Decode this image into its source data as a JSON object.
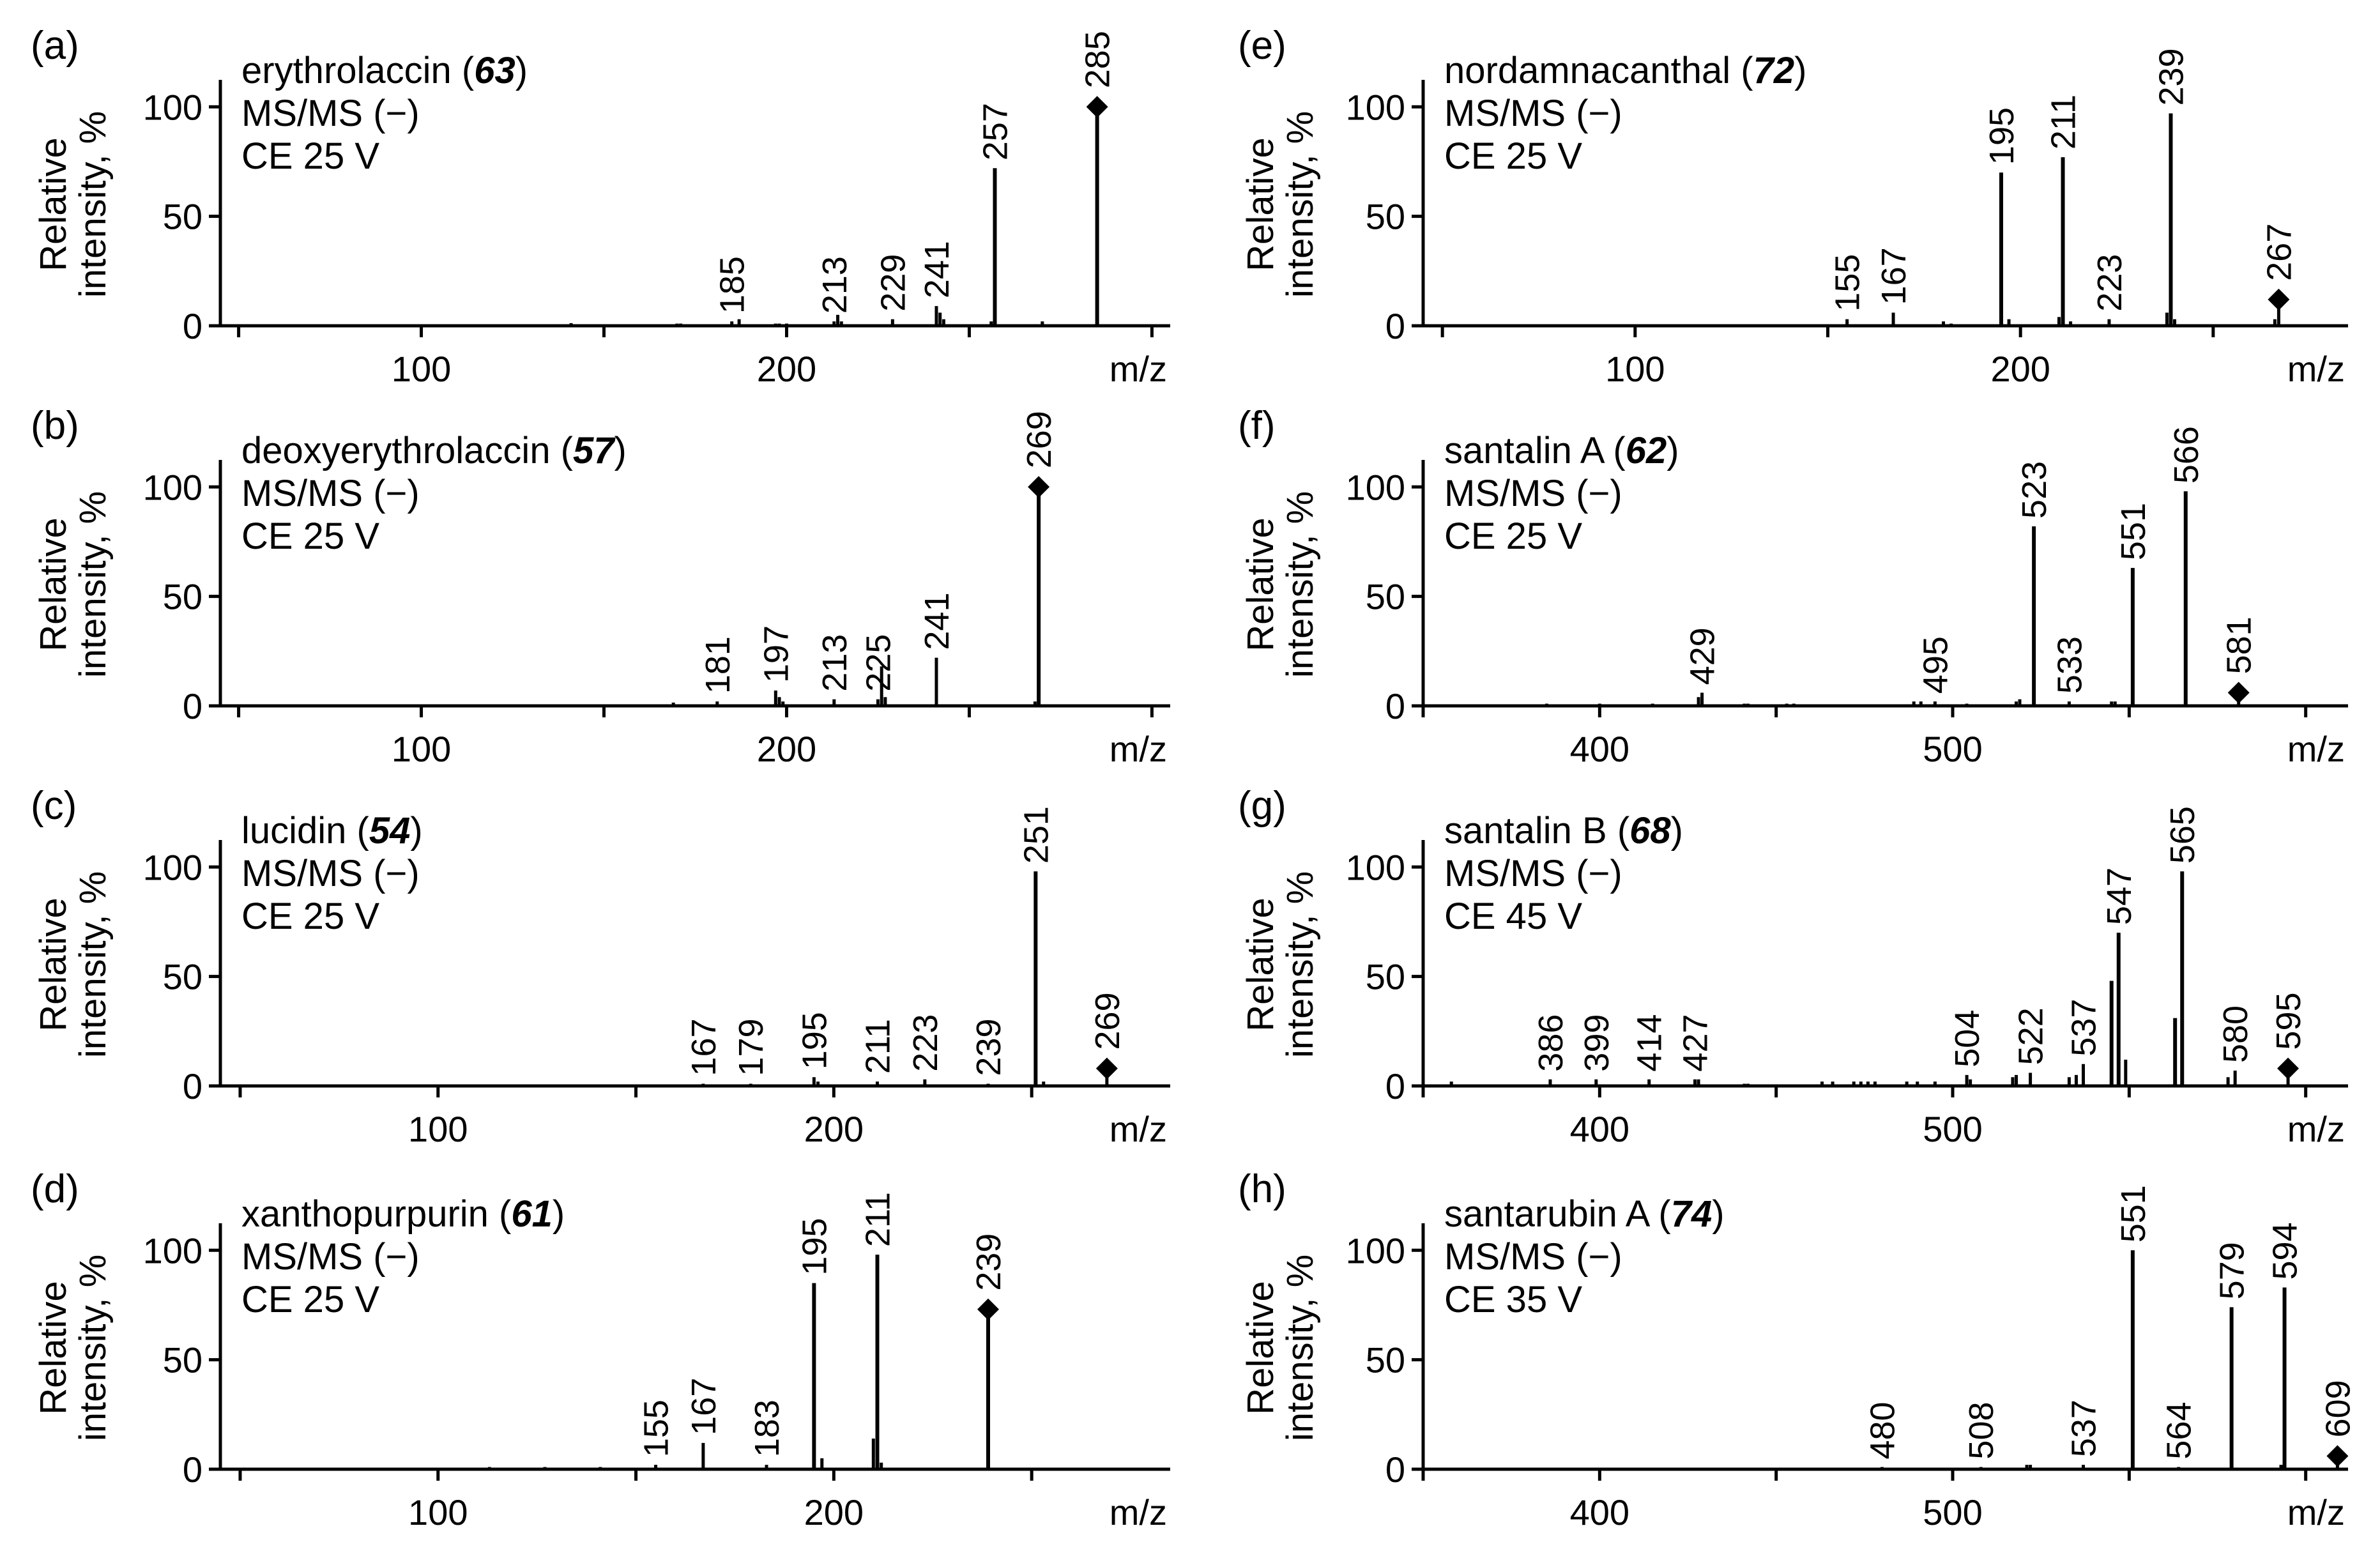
{
  "figure": {
    "ylabel_line1": "Relative",
    "ylabel_line2": "intensity, %",
    "xunit": "m/z",
    "precursor_marker": "diamond-icon"
  },
  "chart_data": [
    {
      "type": "bar",
      "panel": "(a)",
      "compound": "erythrolaccin",
      "compound_no": "63",
      "mode": "MS/MS (−)",
      "ce": "CE 25 V",
      "xlim": [
        45,
        305
      ],
      "ylim": [
        0,
        110
      ],
      "xticks": [
        50,
        100,
        150,
        200,
        250,
        300
      ],
      "xtick_labels": [
        "100",
        "200"
      ],
      "xtick_label_values": [
        100,
        200
      ],
      "yticks": [
        0,
        50,
        100
      ],
      "ytick_labels": [
        "0",
        "50",
        "100"
      ],
      "peaks": [
        {
          "x": 141,
          "y": 1.2
        },
        {
          "x": 170,
          "y": 1
        },
        {
          "x": 171,
          "y": 1
        },
        {
          "x": 185,
          "y": 2,
          "label": "185"
        },
        {
          "x": 187,
          "y": 3
        },
        {
          "x": 197,
          "y": 1
        },
        {
          "x": 198,
          "y": 1
        },
        {
          "x": 200,
          "y": 1
        },
        {
          "x": 213,
          "y": 2,
          "label": "213"
        },
        {
          "x": 214,
          "y": 5
        },
        {
          "x": 215,
          "y": 2
        },
        {
          "x": 229,
          "y": 3,
          "label": "229"
        },
        {
          "x": 241,
          "y": 9,
          "label": "241"
        },
        {
          "x": 242,
          "y": 6
        },
        {
          "x": 243,
          "y": 3
        },
        {
          "x": 257,
          "y": 72,
          "label": "257"
        },
        {
          "x": 256,
          "y": 2
        },
        {
          "x": 270,
          "y": 2
        },
        {
          "x": 285,
          "y": 100,
          "label": "285",
          "precursor": true
        }
      ]
    },
    {
      "type": "bar",
      "panel": "(b)",
      "compound": "deoxyerythrolaccin",
      "compound_no": "57",
      "mode": "MS/MS (−)",
      "ce": "CE 25 V",
      "xlim": [
        45,
        305
      ],
      "ylim": [
        0,
        110
      ],
      "xticks": [
        50,
        100,
        150,
        200,
        250,
        300
      ],
      "xtick_labels": [
        "100",
        "200"
      ],
      "xtick_label_values": [
        100,
        200
      ],
      "yticks": [
        0,
        50,
        100
      ],
      "ytick_labels": [
        "0",
        "50",
        "100"
      ],
      "peaks": [
        {
          "x": 169,
          "y": 1.5
        },
        {
          "x": 181,
          "y": 2,
          "label": "181"
        },
        {
          "x": 197,
          "y": 7,
          "label": "197"
        },
        {
          "x": 198,
          "y": 4
        },
        {
          "x": 199,
          "y": 2
        },
        {
          "x": 213,
          "y": 3,
          "label": "213"
        },
        {
          "x": 225,
          "y": 3,
          "label": "225"
        },
        {
          "x": 226,
          "y": 18
        },
        {
          "x": 227,
          "y": 4
        },
        {
          "x": 241,
          "y": 22,
          "label": "241"
        },
        {
          "x": 268,
          "y": 2
        },
        {
          "x": 269,
          "y": 100,
          "label": "269",
          "precursor": true
        }
      ]
    },
    {
      "type": "bar",
      "panel": "(c)",
      "compound": "lucidin",
      "compound_no": "54",
      "mode": "MS/MS (−)",
      "ce": "CE 25 V",
      "xlim": [
        45,
        285
      ],
      "ylim": [
        0,
        110
      ],
      "xticks": [
        50,
        100,
        150,
        200,
        250
      ],
      "xtick_labels": [
        "100",
        "200"
      ],
      "xtick_label_values": [
        100,
        200
      ],
      "yticks": [
        0,
        50,
        100
      ],
      "ytick_labels": [
        "0",
        "50",
        "100"
      ],
      "peaks": [
        {
          "x": 167,
          "y": 1,
          "label": "167"
        },
        {
          "x": 179,
          "y": 1,
          "label": "179"
        },
        {
          "x": 195,
          "y": 4,
          "label": "195"
        },
        {
          "x": 196,
          "y": 2
        },
        {
          "x": 211,
          "y": 2,
          "label": "211"
        },
        {
          "x": 223,
          "y": 3,
          "label": "223"
        },
        {
          "x": 239,
          "y": 1,
          "label": "239"
        },
        {
          "x": 251,
          "y": 98,
          "label": "251"
        },
        {
          "x": 253,
          "y": 2
        },
        {
          "x": 269,
          "y": 8,
          "label": "269",
          "precursor": true
        }
      ]
    },
    {
      "type": "bar",
      "panel": "(d)",
      "compound": "xanthopurpurin",
      "compound_no": "61",
      "mode": "MS/MS (−)",
      "ce": "CE 25 V",
      "xlim": [
        45,
        285
      ],
      "ylim": [
        0,
        110
      ],
      "xticks": [
        50,
        100,
        150,
        200,
        250
      ],
      "xtick_labels": [
        "100",
        "200"
      ],
      "xtick_label_values": [
        100,
        200
      ],
      "yticks": [
        0,
        50,
        100
      ],
      "ytick_labels": [
        "0",
        "50",
        "100"
      ],
      "peaks": [
        {
          "x": 113,
          "y": 1
        },
        {
          "x": 127,
          "y": 1
        },
        {
          "x": 141,
          "y": 1
        },
        {
          "x": 155,
          "y": 2,
          "label": "155"
        },
        {
          "x": 167,
          "y": 12,
          "label": "167"
        },
        {
          "x": 183,
          "y": 2,
          "label": "183"
        },
        {
          "x": 195,
          "y": 85,
          "label": "195"
        },
        {
          "x": 197,
          "y": 5
        },
        {
          "x": 210,
          "y": 14
        },
        {
          "x": 211,
          "y": 98,
          "label": "211"
        },
        {
          "x": 212,
          "y": 3
        },
        {
          "x": 239,
          "y": 73,
          "label": "239",
          "precursor": true
        }
      ]
    },
    {
      "type": "bar",
      "panel": "(e)",
      "compound": "nordamnacanthal",
      "compound_no": "72",
      "mode": "MS/MS (−)",
      "ce": "CE 25 V",
      "xlim": [
        45,
        285
      ],
      "ylim": [
        0,
        110
      ],
      "xticks": [
        50,
        100,
        150,
        200,
        250
      ],
      "xtick_labels": [
        "100",
        "200"
      ],
      "xtick_label_values": [
        100,
        200
      ],
      "yticks": [
        0,
        50,
        100
      ],
      "ytick_labels": [
        "0",
        "50",
        "100"
      ],
      "peaks": [
        {
          "x": 155,
          "y": 3,
          "label": "155"
        },
        {
          "x": 167,
          "y": 6,
          "label": "167"
        },
        {
          "x": 180,
          "y": 2
        },
        {
          "x": 182,
          "y": 1
        },
        {
          "x": 195,
          "y": 70,
          "label": "195"
        },
        {
          "x": 197,
          "y": 3
        },
        {
          "x": 210,
          "y": 4
        },
        {
          "x": 211,
          "y": 77,
          "label": "211"
        },
        {
          "x": 213,
          "y": 2
        },
        {
          "x": 223,
          "y": 3,
          "label": "223"
        },
        {
          "x": 238,
          "y": 6
        },
        {
          "x": 239,
          "y": 97,
          "label": "239"
        },
        {
          "x": 240,
          "y": 3
        },
        {
          "x": 266,
          "y": 3
        },
        {
          "x": 267,
          "y": 12,
          "label": "267",
          "precursor": true
        }
      ]
    },
    {
      "type": "bar",
      "panel": "(f)",
      "compound": "santalin A",
      "compound_no": "62",
      "mode": "MS/MS (−)",
      "ce": "CE 25 V",
      "xlim": [
        350,
        612
      ],
      "ylim": [
        0,
        110
      ],
      "xticks": [
        350,
        400,
        450,
        500,
        550,
        600
      ],
      "xtick_labels": [
        "400",
        "500"
      ],
      "xtick_label_values": [
        400,
        500
      ],
      "yticks": [
        0,
        50,
        100
      ],
      "ytick_labels": [
        "0",
        "50",
        "100"
      ],
      "peaks": [
        {
          "x": 385,
          "y": 1
        },
        {
          "x": 400,
          "y": 1
        },
        {
          "x": 415,
          "y": 1
        },
        {
          "x": 428,
          "y": 4
        },
        {
          "x": 429,
          "y": 6,
          "label": "429"
        },
        {
          "x": 441,
          "y": 1
        },
        {
          "x": 442,
          "y": 1
        },
        {
          "x": 453,
          "y": 1
        },
        {
          "x": 455,
          "y": 1
        },
        {
          "x": 489,
          "y": 2
        },
        {
          "x": 491,
          "y": 2
        },
        {
          "x": 495,
          "y": 2,
          "label": "495"
        },
        {
          "x": 504,
          "y": 1
        },
        {
          "x": 518,
          "y": 2
        },
        {
          "x": 519,
          "y": 3
        },
        {
          "x": 523,
          "y": 82,
          "label": "523"
        },
        {
          "x": 533,
          "y": 2,
          "label": "533"
        },
        {
          "x": 545,
          "y": 2
        },
        {
          "x": 546,
          "y": 2
        },
        {
          "x": 551,
          "y": 63,
          "label": "551"
        },
        {
          "x": 566,
          "y": 98,
          "label": "566"
        },
        {
          "x": 581,
          "y": 6,
          "label": "581",
          "precursor": true
        }
      ]
    },
    {
      "type": "bar",
      "panel": "(g)",
      "compound": "santalin B",
      "compound_no": "68",
      "mode": "MS/MS (−)",
      "ce": "CE 45 V",
      "xlim": [
        350,
        612
      ],
      "ylim": [
        0,
        110
      ],
      "xticks": [
        350,
        400,
        450,
        500,
        550,
        600
      ],
      "xtick_labels": [
        "400",
        "500"
      ],
      "xtick_label_values": [
        400,
        500
      ],
      "yticks": [
        0,
        50,
        100
      ],
      "ytick_labels": [
        "0",
        "50",
        "100"
      ],
      "peaks": [
        {
          "x": 358,
          "y": 2
        },
        {
          "x": 386,
          "y": 3,
          "label": "386"
        },
        {
          "x": 399,
          "y": 3,
          "label": "399"
        },
        {
          "x": 414,
          "y": 3,
          "label": "414"
        },
        {
          "x": 427,
          "y": 3,
          "label": "427"
        },
        {
          "x": 428,
          "y": 3
        },
        {
          "x": 441,
          "y": 1
        },
        {
          "x": 442,
          "y": 1
        },
        {
          "x": 463,
          "y": 2
        },
        {
          "x": 466,
          "y": 2
        },
        {
          "x": 472,
          "y": 2
        },
        {
          "x": 474,
          "y": 2
        },
        {
          "x": 476,
          "y": 2
        },
        {
          "x": 478,
          "y": 2
        },
        {
          "x": 487,
          "y": 2
        },
        {
          "x": 490,
          "y": 2
        },
        {
          "x": 495,
          "y": 2
        },
        {
          "x": 504,
          "y": 5,
          "label": "504"
        },
        {
          "x": 505,
          "y": 3
        },
        {
          "x": 517,
          "y": 4
        },
        {
          "x": 518,
          "y": 5
        },
        {
          "x": 522,
          "y": 6,
          "label": "522"
        },
        {
          "x": 533,
          "y": 4
        },
        {
          "x": 535,
          "y": 5
        },
        {
          "x": 537,
          "y": 10,
          "label": "537"
        },
        {
          "x": 545,
          "y": 48
        },
        {
          "x": 547,
          "y": 70,
          "label": "547"
        },
        {
          "x": 549,
          "y": 12
        },
        {
          "x": 563,
          "y": 31
        },
        {
          "x": 565,
          "y": 98,
          "label": "565"
        },
        {
          "x": 578,
          "y": 4
        },
        {
          "x": 580,
          "y": 7,
          "label": "580"
        },
        {
          "x": 595,
          "y": 8,
          "label": "595",
          "precursor": true
        }
      ]
    },
    {
      "type": "bar",
      "panel": "(h)",
      "compound": "santarubin A",
      "compound_no": "74",
      "mode": "MS/MS (−)",
      "ce": "CE 35 V",
      "xlim": [
        350,
        612
      ],
      "ylim": [
        0,
        110
      ],
      "xticks": [
        350,
        400,
        450,
        500,
        550,
        600
      ],
      "xtick_labels": [
        "400",
        "500"
      ],
      "xtick_label_values": [
        400,
        500
      ],
      "yticks": [
        0,
        50,
        100
      ],
      "ytick_labels": [
        "0",
        "50",
        "100"
      ],
      "peaks": [
        {
          "x": 480,
          "y": 1,
          "label": "480"
        },
        {
          "x": 508,
          "y": 1,
          "label": "508"
        },
        {
          "x": 521,
          "y": 2
        },
        {
          "x": 522,
          "y": 2
        },
        {
          "x": 537,
          "y": 2,
          "label": "537"
        },
        {
          "x": 551,
          "y": 100,
          "label": "551"
        },
        {
          "x": 564,
          "y": 1,
          "label": "564"
        },
        {
          "x": 579,
          "y": 74,
          "label": "579"
        },
        {
          "x": 593,
          "y": 2
        },
        {
          "x": 594,
          "y": 83,
          "label": "594"
        },
        {
          "x": 609,
          "y": 6,
          "label": "609",
          "precursor": true
        }
      ]
    }
  ]
}
